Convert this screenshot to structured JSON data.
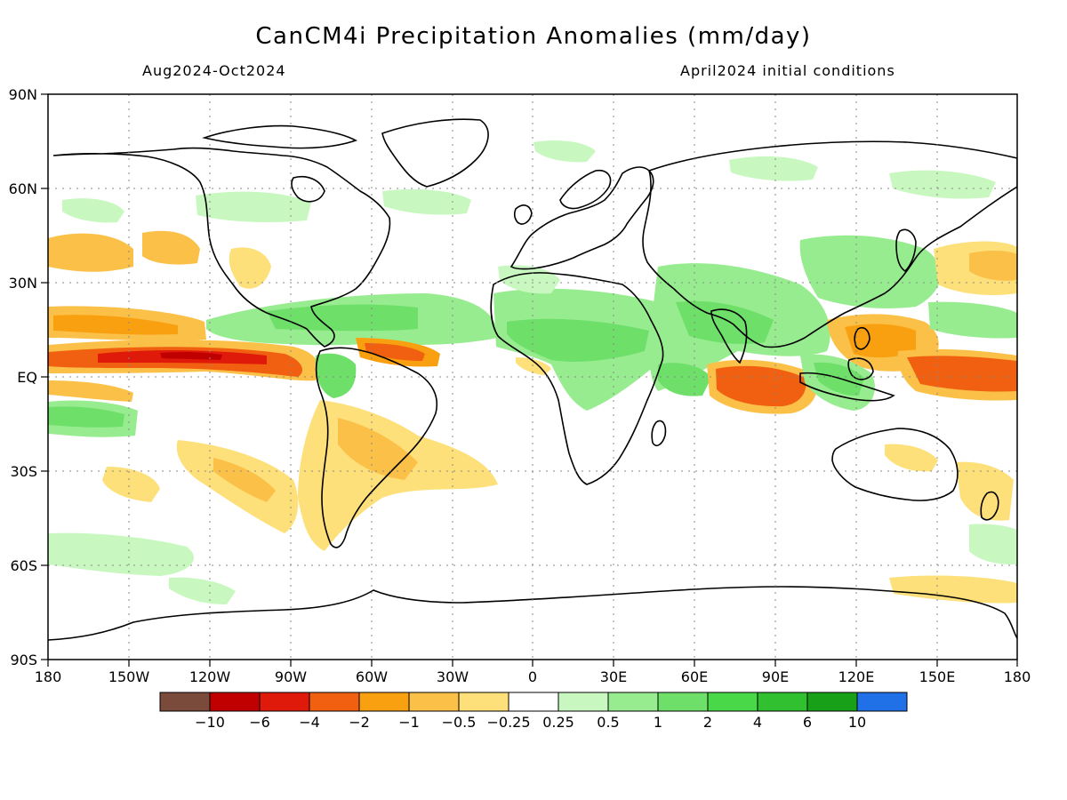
{
  "title": "CanCM4i Precipitation Anomalies (mm/day)",
  "subtitle_left": "Aug2024-Oct2024",
  "subtitle_right": "April2024 initial conditions",
  "map": {
    "projection": "equirectangular",
    "lon_range": [
      -180,
      180
    ],
    "lat_range": [
      -90,
      90
    ],
    "grid": "dotted",
    "lat_ticks": [
      "90N",
      "60N",
      "30N",
      "EQ",
      "30S",
      "60S",
      "90S"
    ],
    "lon_ticks": [
      "180",
      "150W",
      "120W",
      "90W",
      "60W",
      "30W",
      "0",
      "30E",
      "60E",
      "90E",
      "120E",
      "150E",
      "180"
    ],
    "coastline_color": "#000000"
  },
  "colorbar": {
    "colors": [
      "#7a4a3a",
      "#c00000",
      "#e01a0a",
      "#f06010",
      "#f8a010",
      "#fbc048",
      "#fde07a",
      "#ffffff",
      "#c8f8c0",
      "#98ec90",
      "#6ee06a",
      "#48d848",
      "#30c030",
      "#18a018",
      "#2070e8"
    ],
    "labels": [
      "−10",
      "−6",
      "−4",
      "−2",
      "−1",
      "−0.5",
      "−0.25",
      "0.25",
      "0.5",
      "1",
      "2",
      "4",
      "6",
      "10"
    ]
  },
  "anomaly_regions": [
    {
      "name": "east-pacific-dry-band",
      "color": "#e01a0a"
    },
    {
      "name": "west-pacific-dry",
      "color": "#f06010"
    },
    {
      "name": "indian-ocean-dry",
      "color": "#f06010"
    },
    {
      "name": "sahel-wet-band",
      "color": "#6ee06a"
    },
    {
      "name": "south-pacific-wet",
      "color": "#6ee06a"
    }
  ]
}
